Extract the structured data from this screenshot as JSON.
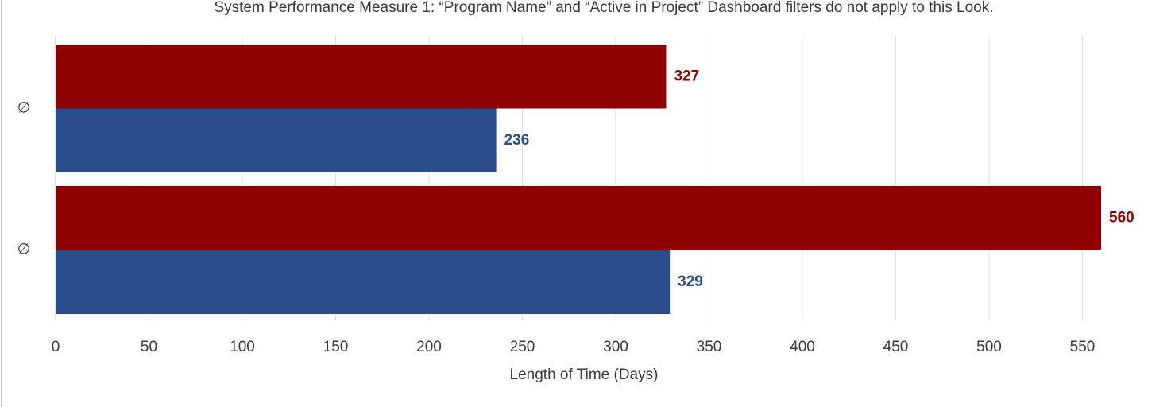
{
  "chart_data": {
    "type": "bar",
    "orientation": "horizontal",
    "title": "System Performance Measure 1: “Program Name” and “Active in Project” Dashboard filters do not apply to this Look.",
    "categories": [
      "∅",
      "∅"
    ],
    "series": [
      {
        "color": "#8f0000",
        "values": [
          327,
          560
        ]
      },
      {
        "color": "#2b4c8a",
        "values": [
          236,
          329
        ]
      }
    ],
    "xlabel": "Length of Time (Days)",
    "xlim": [
      0,
      560
    ],
    "xticks": [
      0,
      50,
      100,
      150,
      200,
      250,
      300,
      350,
      400,
      450,
      500,
      550
    ],
    "grid": true
  }
}
